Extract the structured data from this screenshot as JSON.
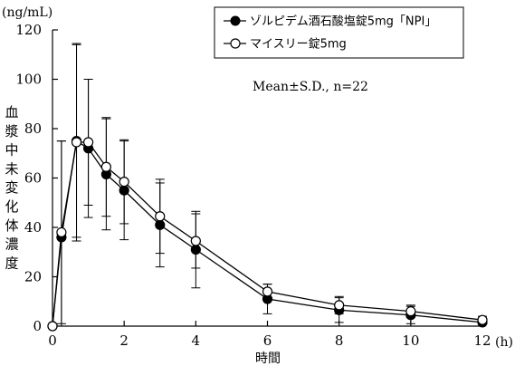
{
  "chart_data": {
    "type": "line",
    "ylabel_unit": "(ng/mL)",
    "xlabel": "時間",
    "xlabel_unit": "(h)",
    "ylabel": "血漿中未変化体濃度",
    "xlim": [
      0,
      12
    ],
    "ylim": [
      0,
      120
    ],
    "x_ticks": [
      0,
      2,
      4,
      6,
      8,
      10,
      12
    ],
    "y_ticks": [
      0,
      20,
      40,
      60,
      80,
      100,
      120
    ],
    "annotation": "Mean±S.D., n=22",
    "legend_position": "top-right",
    "series": [
      {
        "name": "ゾルピデム酒石酸塩錠5mg「NPI」",
        "marker": "filled-circle",
        "color": "#000000",
        "x": [
          0,
          0.25,
          0.67,
          1,
          1.5,
          2,
          3,
          4,
          6,
          8,
          10,
          12
        ],
        "y": [
          0,
          36,
          75,
          72,
          61.5,
          55,
          41,
          31,
          11,
          6.5,
          4.5,
          1.5
        ],
        "sd": [
          0,
          39,
          39,
          28,
          22.5,
          20,
          17,
          15.5,
          6,
          5,
          3.5,
          1.5
        ]
      },
      {
        "name": "マイスリー錠5mg",
        "marker": "open-circle",
        "color": "#000000",
        "x": [
          0,
          0.25,
          0.67,
          1,
          1.5,
          2,
          3,
          4,
          6,
          8,
          10,
          12
        ],
        "y": [
          0,
          38,
          74.5,
          74.5,
          64.5,
          58.5,
          44.5,
          34.5,
          14,
          8.5,
          6,
          2.5
        ],
        "sd": [
          0,
          37,
          40,
          25.5,
          20,
          17,
          15,
          11,
          3,
          3.5,
          2.5,
          1.5
        ]
      }
    ]
  }
}
